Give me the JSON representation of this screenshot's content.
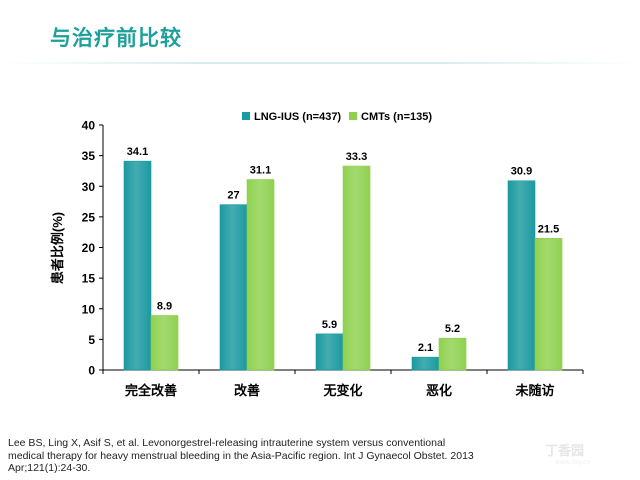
{
  "slide": {
    "title": "与治疗前比较",
    "citation": "Lee BS, Ling X, Asif S, et al. Levonorgestrel-releasing intrauterine system versus conventional medical therapy for heavy menstrual bleeding in the Asia-Pacific region. Int J Gynaecol Obstet. 2013 Apr;121(1):24-30.",
    "watermark": "丁香园",
    "watermark_sub": "www.dxy.cn"
  },
  "chart_data": {
    "type": "bar",
    "categories": [
      "完全改善",
      "改善",
      "无变化",
      "恶化",
      "未随访"
    ],
    "series": [
      {
        "name": "LNG-IUS (n=437)",
        "values": [
          34.1,
          27,
          5.9,
          2.1,
          30.9
        ],
        "labels": [
          "34.1",
          "27",
          "5.9",
          "2.1",
          "30.9"
        ],
        "color": "#1b9aa0"
      },
      {
        "name": "CMTs (n=135)",
        "values": [
          8.9,
          31.1,
          33.3,
          5.2,
          21.5
        ],
        "labels": [
          "8.9",
          "31.1",
          "33.3",
          "5.2",
          "21.5"
        ],
        "color": "#8fd14f"
      }
    ],
    "ylabel": "患者比例(%)",
    "xlabel": "",
    "ylim": [
      0,
      40
    ],
    "yticks": [
      0,
      5,
      10,
      15,
      20,
      25,
      30,
      35,
      40
    ],
    "grid": false,
    "legend_position": "top-center"
  }
}
